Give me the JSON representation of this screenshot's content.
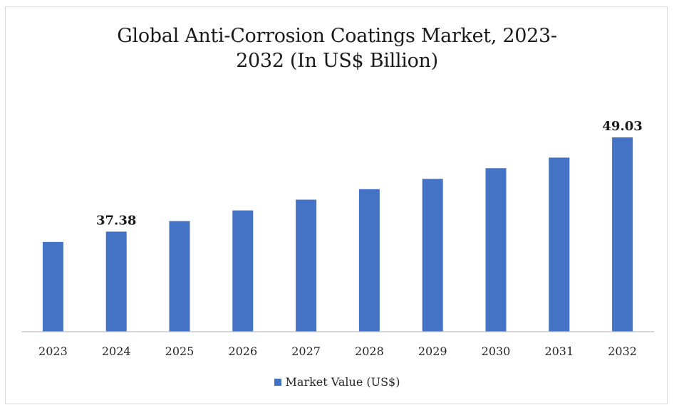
{
  "chart_data": {
    "type": "bar",
    "title_line1": "Global Anti-Corrosion Coatings Market, 2023-",
    "title_line2": "2032 (In US$ Billion)",
    "categories": [
      "2023",
      "2024",
      "2025",
      "2026",
      "2027",
      "2028",
      "2029",
      "2030",
      "2031",
      "2032"
    ],
    "series": [
      {
        "name": "Market Value (US$)",
        "values": [
          36.1,
          37.38,
          38.68,
          40.0,
          41.33,
          42.62,
          43.9,
          45.22,
          46.53,
          49.03
        ],
        "color": "#4472c4"
      }
    ],
    "data_labels": [
      {
        "index": 1,
        "text": "37.38"
      },
      {
        "index": 9,
        "text": "49.03"
      }
    ],
    "ylim": [
      25,
      50
    ],
    "grid": false,
    "legend_position": "bottom"
  }
}
